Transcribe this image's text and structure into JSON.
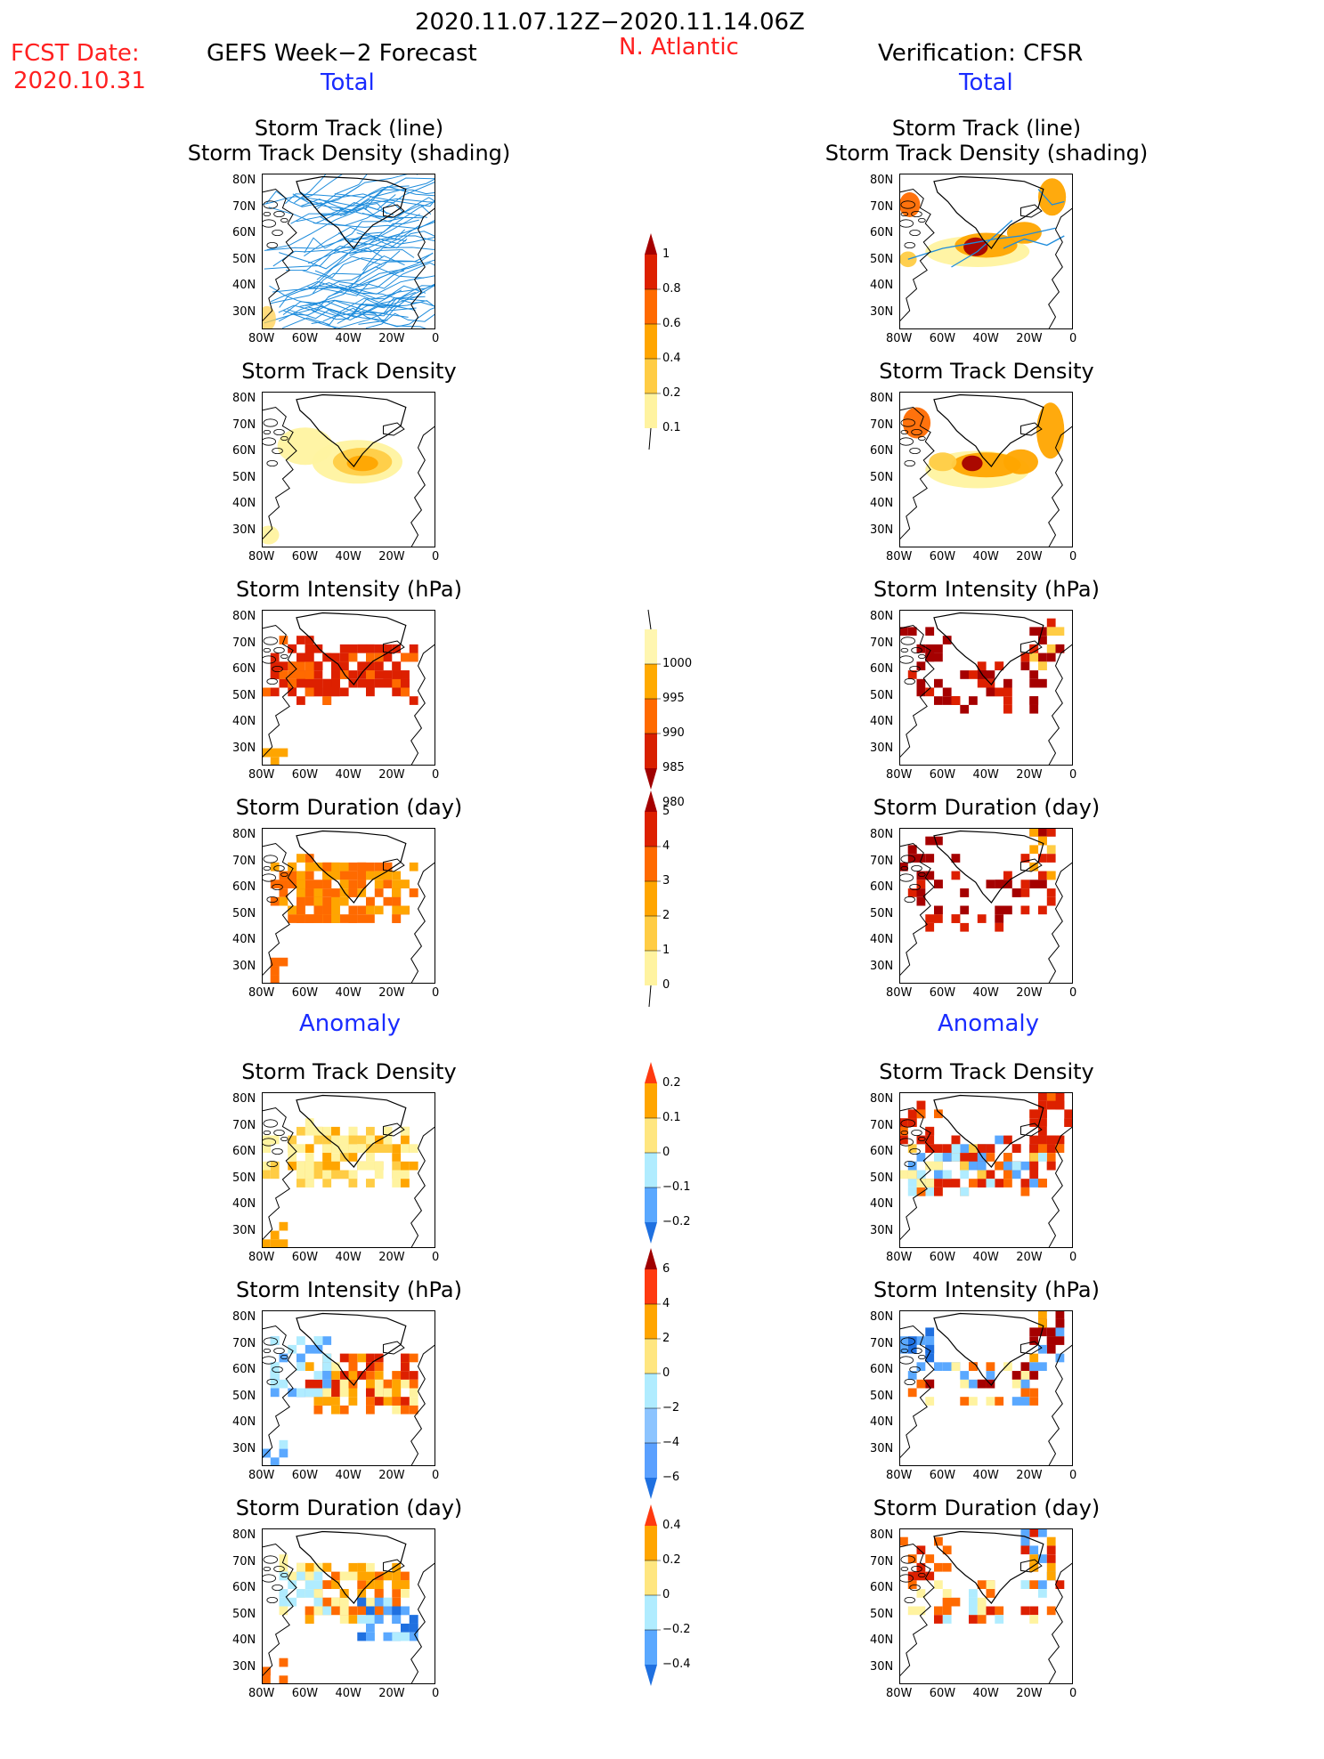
{
  "header": {
    "date_range": "2020.11.07.12Z−2020.11.14.06Z",
    "fcst_label": "FCST Date:",
    "fcst_date": "2020.10.31",
    "forecast_title": "GEFS Week−2 Forecast",
    "region": "N. Atlantic",
    "verification_title": "Verification: CFSR"
  },
  "sections": {
    "total_label": "Total",
    "anomaly_label": "Anomaly"
  },
  "panel_titles": {
    "track_line": "Storm Track (line)",
    "track_density_shading": "Storm Track Density (shading)",
    "track_density": "Storm Track Density",
    "intensity": "Storm Intensity (hPa)",
    "duration": "Storm Duration (day)"
  },
  "axes": {
    "lat_ticks": [
      "80N",
      "70N",
      "60N",
      "50N",
      "40N",
      "30N"
    ],
    "lon_ticks": [
      "80W",
      "60W",
      "40W",
      "20W",
      "0"
    ]
  },
  "colorbars": {
    "density": {
      "labels": [
        "1",
        "0.8",
        "0.6",
        "0.4",
        "0.2",
        "0.1"
      ],
      "colors": [
        "#a50000",
        "#dd2000",
        "#ff6a00",
        "#ffa500",
        "#ffcc44",
        "#fff3a0"
      ]
    },
    "intensity": {
      "labels": [
        "1000",
        "995",
        "990",
        "985",
        "980"
      ],
      "colors": [
        "#fff6b0",
        "#ffaa00",
        "#ff6a00",
        "#d82000",
        "#a00000"
      ]
    },
    "duration": {
      "labels": [
        "5",
        "4",
        "3",
        "2",
        "1",
        "0"
      ],
      "colors": [
        "#a50000",
        "#dd2000",
        "#ff6a00",
        "#ffa500",
        "#ffcc44",
        "#fff3a0"
      ]
    },
    "anom_density": {
      "labels": [
        "0.2",
        "0.1",
        "0",
        "−0.1",
        "−0.2"
      ],
      "colors": [
        "#ff3a10",
        "#ffa500",
        "#ffe680",
        "#b0ecff",
        "#5aa8ff",
        "#1f70e0"
      ]
    },
    "anom_intensity": {
      "labels": [
        "6",
        "4",
        "2",
        "0",
        "−2",
        "−4",
        "−6"
      ],
      "colors": [
        "#a00000",
        "#ff3a10",
        "#ffa500",
        "#ffe680",
        "#b0ecff",
        "#8cc4ff",
        "#5aa0ff",
        "#1f70e0"
      ]
    },
    "anom_duration": {
      "labels": [
        "0.4",
        "0.2",
        "0",
        "−0.2",
        "−0.4"
      ],
      "colors": [
        "#ff3a10",
        "#ffa500",
        "#ffe680",
        "#b0ecff",
        "#5aa8ff",
        "#1f70e0"
      ]
    }
  },
  "fill_colors": {
    "light": "#fff3a0",
    "yellow": "#ffcc44",
    "orange": "#ffa500",
    "dark_orange": "#ff6a00",
    "red": "#dd2000",
    "dark_red": "#a50000",
    "pale_blue": "#b0ecff",
    "blue": "#5aa8ff",
    "dark_blue": "#1f70e0",
    "track_line": "#1e8cdc"
  }
}
